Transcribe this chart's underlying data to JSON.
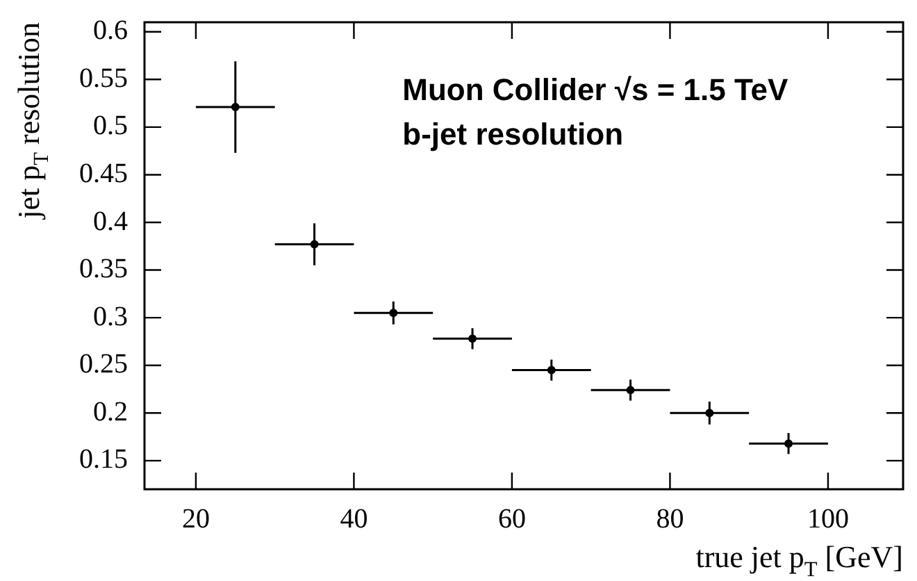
{
  "chart_data": {
    "type": "scatter",
    "xlabel": "true jet p$_{T}$ [GeV]",
    "ylabel": "jet p$_{T}$ resolution",
    "annotations": [
      "Muon Collider √s = 1.5 TeV",
      "b-jet resolution"
    ],
    "x": [
      25,
      35,
      45,
      55,
      65,
      75,
      85,
      95
    ],
    "series": [
      {
        "color": "#000000",
        "values": [
          0.521,
          0.377,
          0.305,
          0.278,
          0.245,
          0.224,
          0.2,
          0.168
        ],
        "errors": [
          0.048,
          0.022,
          0.012,
          0.011,
          0.011,
          0.011,
          0.012,
          0.011
        ],
        "xerrors": [
          5,
          5,
          5,
          5,
          5,
          5,
          5,
          5
        ]
      }
    ],
    "xlim": [
      13.5,
      109.5
    ],
    "xticks": [
      20,
      40,
      60,
      80,
      100
    ],
    "ylim": [
      0.12,
      0.61
    ],
    "yticks": [
      {
        "value": 0.15,
        "label": "0.15"
      },
      {
        "value": 0.2,
        "label": "0.2"
      },
      {
        "value": 0.25,
        "label": "0.25"
      },
      {
        "value": 0.3,
        "label": "0.3"
      },
      {
        "value": 0.35,
        "label": "0.35"
      },
      {
        "value": 0.4,
        "label": "0.4"
      },
      {
        "value": 0.45,
        "label": "0.45"
      },
      {
        "value": 0.5,
        "label": "0.5"
      },
      {
        "value": 0.55,
        "label": "0.55"
      },
      {
        "value": 0.6,
        "label": "0.6"
      }
    ],
    "grid": false,
    "legend": false,
    "marker": "circle"
  }
}
